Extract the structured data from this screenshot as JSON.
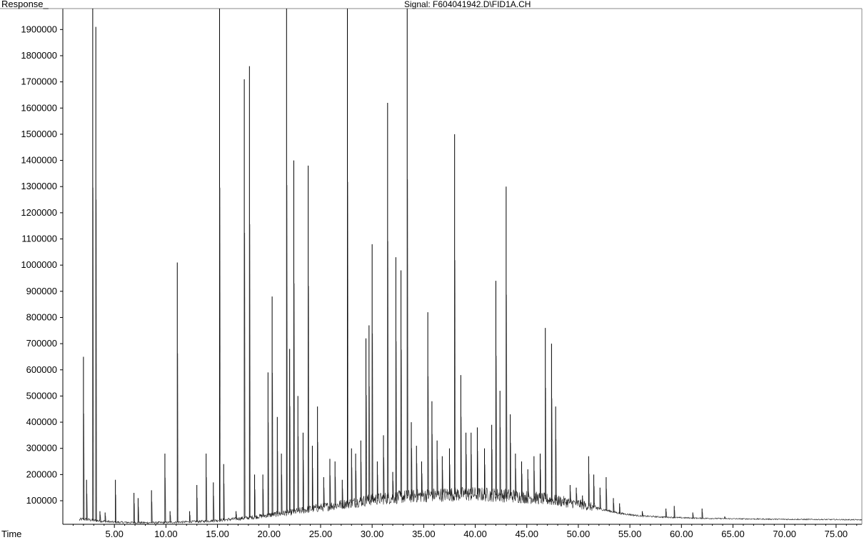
{
  "chart_data": {
    "type": "line",
    "title": "Signal: F604041942.D\\FID1A.CH",
    "ylabel": "Response_",
    "xlabel": "Time",
    "xlim": [
      0,
      77.5
    ],
    "ylim": [
      10000,
      1980000
    ],
    "x_ticks": [
      5,
      10,
      15,
      20,
      25,
      30,
      35,
      40,
      45,
      50,
      55,
      60,
      65,
      70,
      75
    ],
    "x_tick_labels": [
      "5.00",
      "10.00",
      "15.00",
      "20.00",
      "25.00",
      "30.00",
      "35.00",
      "40.00",
      "45.00",
      "50.00",
      "55.00",
      "60.00",
      "65.00",
      "70.00",
      "75.00"
    ],
    "y_ticks": [
      100000,
      200000,
      300000,
      400000,
      500000,
      600000,
      700000,
      800000,
      900000,
      1000000,
      1100000,
      1200000,
      1300000,
      1400000,
      1500000,
      1600000,
      1700000,
      1800000,
      1900000
    ],
    "y_tick_labels": [
      "100000",
      "200000",
      "300000",
      "400000",
      "500000",
      "600000",
      "700000",
      "800000",
      "900000",
      "1000000",
      "1100000",
      "1200000",
      "1300000",
      "1400000",
      "1500000",
      "1600000",
      "1700000",
      "1800000",
      "1900000"
    ],
    "series": [
      {
        "baseline": [
          [
            0,
            15000
          ],
          [
            2,
            30000
          ],
          [
            3,
            25000
          ],
          [
            5,
            18000
          ],
          [
            8,
            16000
          ],
          [
            10,
            17000
          ],
          [
            12,
            19000
          ],
          [
            14,
            22000
          ],
          [
            16,
            28000
          ],
          [
            18,
            35000
          ],
          [
            20,
            45000
          ],
          [
            22,
            55000
          ],
          [
            24,
            68000
          ],
          [
            26,
            80000
          ],
          [
            28,
            92000
          ],
          [
            30,
            105000
          ],
          [
            32,
            112000
          ],
          [
            34,
            118000
          ],
          [
            36,
            122000
          ],
          [
            38,
            125000
          ],
          [
            40,
            125000
          ],
          [
            42,
            122000
          ],
          [
            44,
            118000
          ],
          [
            46,
            110000
          ],
          [
            48,
            100000
          ],
          [
            50,
            88000
          ],
          [
            52,
            70000
          ],
          [
            54,
            52000
          ],
          [
            56,
            42000
          ],
          [
            58,
            38000
          ],
          [
            60,
            35000
          ],
          [
            62,
            33000
          ],
          [
            65,
            31000
          ],
          [
            70,
            29000
          ],
          [
            75,
            28000
          ],
          [
            77.5,
            27000
          ]
        ],
        "peaks": [
          [
            2.0,
            650000
          ],
          [
            2.3,
            180000
          ],
          [
            2.9,
            1980000
          ],
          [
            3.2,
            1910000
          ],
          [
            3.6,
            60000
          ],
          [
            4.1,
            55000
          ],
          [
            5.1,
            180000
          ],
          [
            6.9,
            130000
          ],
          [
            7.3,
            110000
          ],
          [
            8.6,
            140000
          ],
          [
            9.9,
            280000
          ],
          [
            10.4,
            60000
          ],
          [
            11.1,
            1010000
          ],
          [
            12.3,
            60000
          ],
          [
            13.0,
            160000
          ],
          [
            13.9,
            280000
          ],
          [
            14.6,
            170000
          ],
          [
            15.2,
            1980000
          ],
          [
            15.6,
            240000
          ],
          [
            16.8,
            60000
          ],
          [
            17.6,
            1710000
          ],
          [
            18.1,
            1760000
          ],
          [
            18.6,
            200000
          ],
          [
            19.4,
            200000
          ],
          [
            19.9,
            590000
          ],
          [
            20.3,
            880000
          ],
          [
            20.8,
            420000
          ],
          [
            21.2,
            280000
          ],
          [
            21.7,
            1980000
          ],
          [
            22.0,
            680000
          ],
          [
            22.4,
            1400000
          ],
          [
            22.8,
            500000
          ],
          [
            23.3,
            360000
          ],
          [
            23.8,
            1380000
          ],
          [
            24.2,
            310000
          ],
          [
            24.7,
            460000
          ],
          [
            25.3,
            190000
          ],
          [
            25.9,
            260000
          ],
          [
            26.4,
            250000
          ],
          [
            27.1,
            180000
          ],
          [
            27.6,
            1980000
          ],
          [
            28.0,
            300000
          ],
          [
            28.4,
            280000
          ],
          [
            28.9,
            330000
          ],
          [
            29.4,
            720000
          ],
          [
            29.7,
            770000
          ],
          [
            30.0,
            1080000
          ],
          [
            30.5,
            250000
          ],
          [
            31.1,
            350000
          ],
          [
            31.5,
            1620000
          ],
          [
            32.0,
            210000
          ],
          [
            32.3,
            1030000
          ],
          [
            32.8,
            980000
          ],
          [
            33.4,
            1980000
          ],
          [
            33.8,
            400000
          ],
          [
            34.3,
            310000
          ],
          [
            34.8,
            250000
          ],
          [
            35.4,
            820000
          ],
          [
            35.8,
            480000
          ],
          [
            36.3,
            330000
          ],
          [
            36.8,
            270000
          ],
          [
            37.5,
            300000
          ],
          [
            38.0,
            1500000
          ],
          [
            38.6,
            580000
          ],
          [
            39.1,
            360000
          ],
          [
            39.6,
            360000
          ],
          [
            40.2,
            380000
          ],
          [
            40.9,
            300000
          ],
          [
            41.6,
            390000
          ],
          [
            42.0,
            940000
          ],
          [
            42.4,
            520000
          ],
          [
            43.0,
            1300000
          ],
          [
            43.4,
            430000
          ],
          [
            43.9,
            280000
          ],
          [
            44.5,
            250000
          ],
          [
            45.1,
            220000
          ],
          [
            45.7,
            270000
          ],
          [
            46.3,
            280000
          ],
          [
            46.8,
            760000
          ],
          [
            47.4,
            700000
          ],
          [
            47.8,
            460000
          ],
          [
            49.2,
            160000
          ],
          [
            49.8,
            150000
          ],
          [
            50.4,
            120000
          ],
          [
            51.0,
            270000
          ],
          [
            51.5,
            200000
          ],
          [
            52.1,
            150000
          ],
          [
            52.7,
            190000
          ],
          [
            53.4,
            110000
          ],
          [
            54.0,
            90000
          ],
          [
            56.2,
            60000
          ],
          [
            58.5,
            70000
          ],
          [
            59.3,
            80000
          ],
          [
            61.1,
            55000
          ],
          [
            62.0,
            70000
          ],
          [
            64.2,
            40000
          ]
        ]
      }
    ]
  }
}
